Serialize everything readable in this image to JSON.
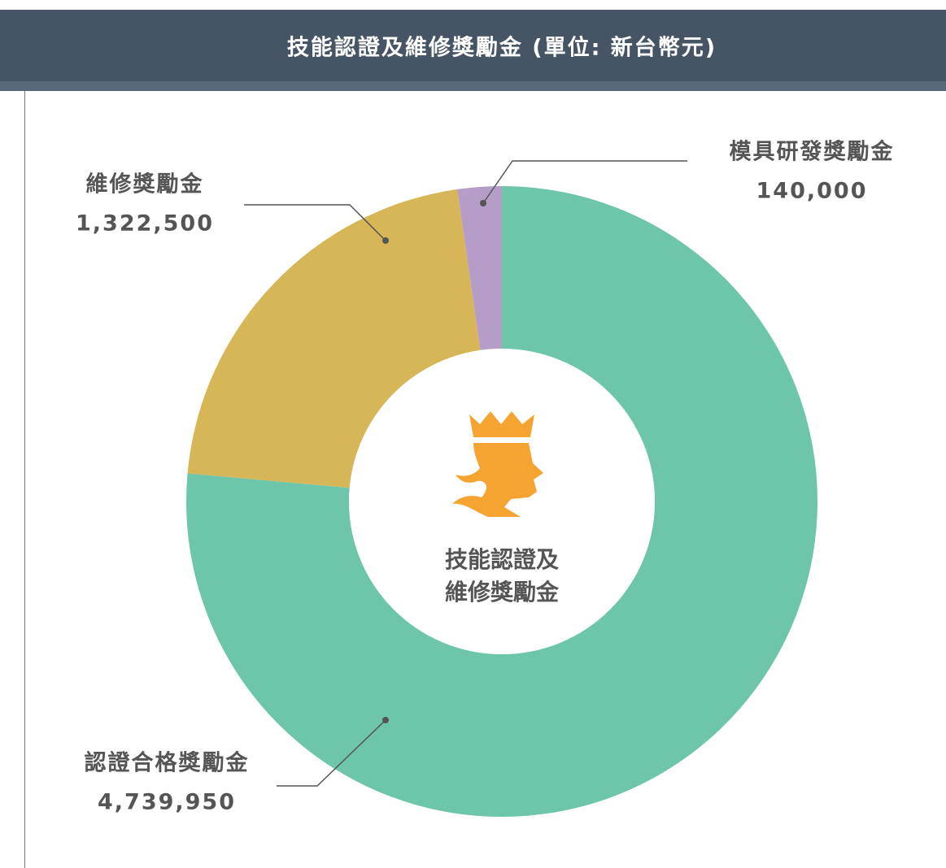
{
  "chart_data": {
    "type": "donut",
    "title": "技能認證及維修獎勵金 (單位: 新台幣元)",
    "center_text": [
      "技能認證及",
      "維修獎勵金"
    ],
    "categories": [
      "認證合格獎勵金",
      "維修獎勵金",
      "模具研發獎勵金"
    ],
    "values": [
      4739950,
      1322500,
      140000
    ],
    "value_labels": [
      "4,739,950",
      "1,322,500",
      "140,000"
    ],
    "colors": [
      "#6ec6aa",
      "#d6b656",
      "#b59dc8"
    ]
  }
}
